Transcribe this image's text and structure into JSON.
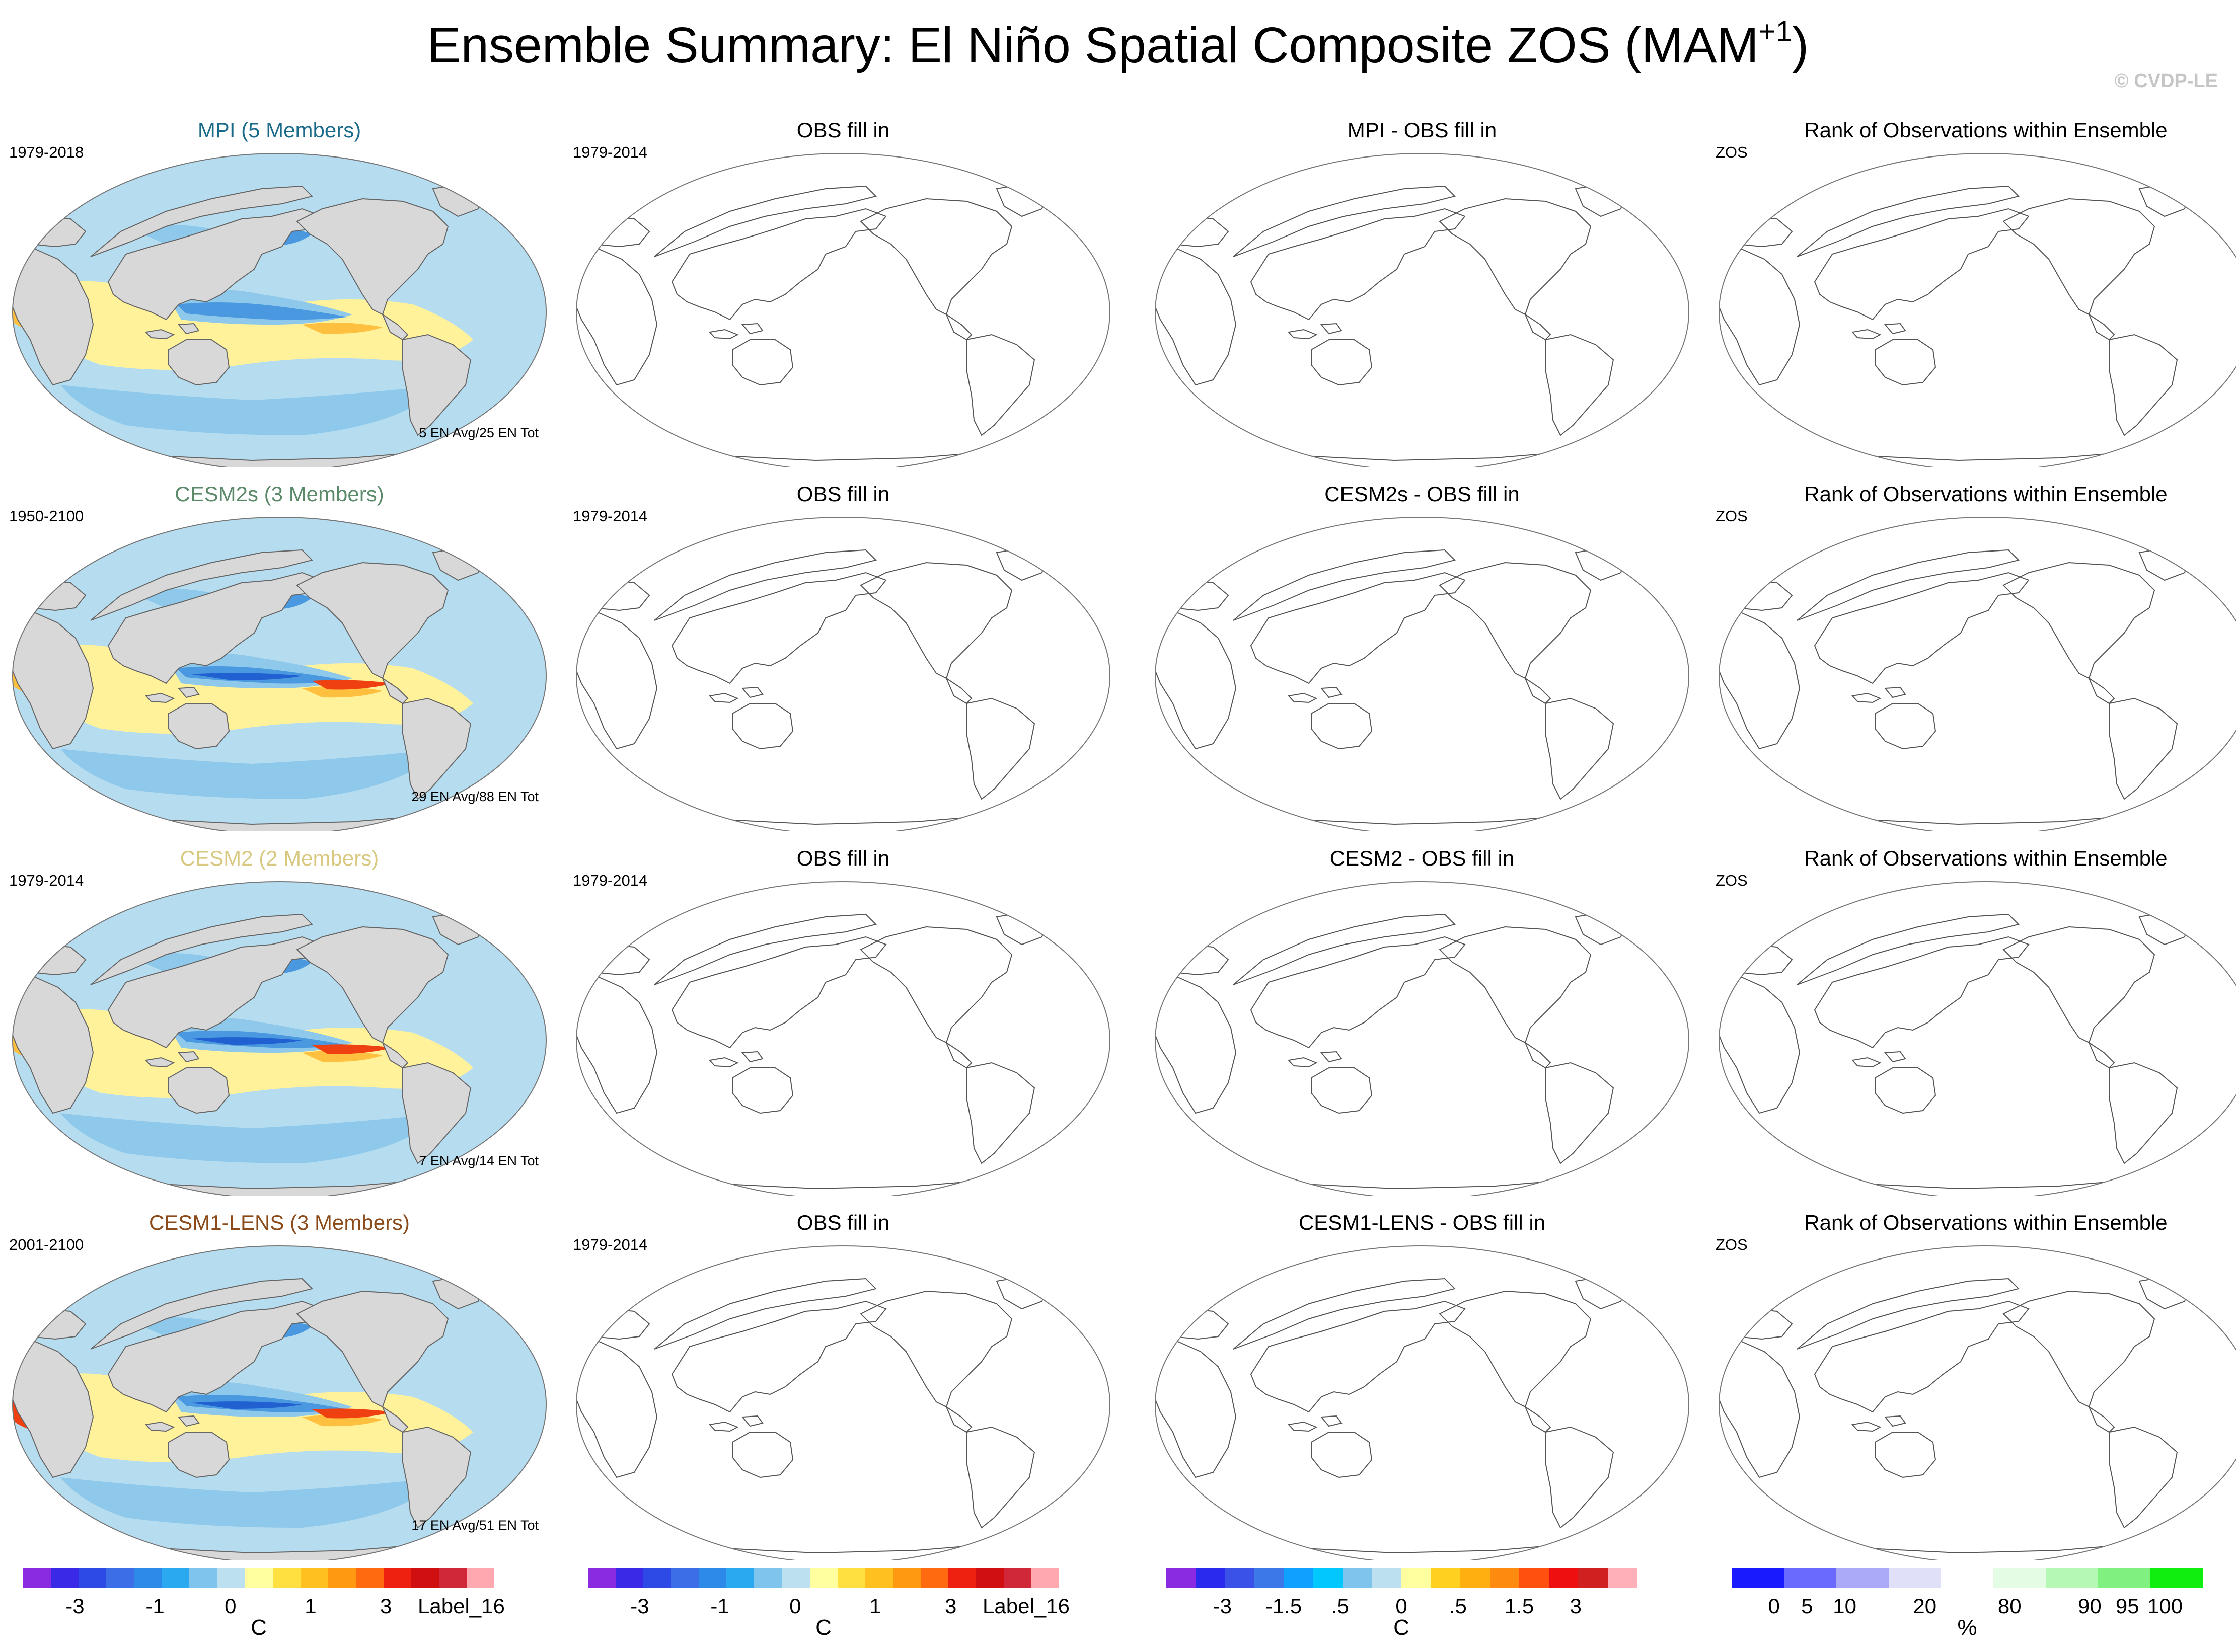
{
  "header": {
    "title_main": "Ensemble Summary: El Niño Spatial Composite ZOS (MAM",
    "title_sup": "+1",
    "title_close": ")",
    "credit": "© CVDP-LE"
  },
  "rows": [
    {
      "ensemble": {
        "title": "MPI (5 Members)",
        "title_color": "#1a6a8a",
        "years": "1979-2018",
        "count": "5 EN Avg/25 EN Tot"
      },
      "obs": {
        "title": "OBS fill in",
        "years": "1979-2014"
      },
      "diff": {
        "title": "MPI - OBS fill in"
      },
      "rank": {
        "title": "Rank of Observations within Ensemble",
        "var": "ZOS"
      }
    },
    {
      "ensemble": {
        "title": "CESM2s (3 Members)",
        "title_color": "#5a8a6a",
        "years": "1950-2100",
        "count": "29 EN Avg/88 EN Tot"
      },
      "obs": {
        "title": "OBS fill in",
        "years": "1979-2014"
      },
      "diff": {
        "title": "CESM2s - OBS fill in"
      },
      "rank": {
        "title": "Rank of Observations within Ensemble",
        "var": "ZOS"
      }
    },
    {
      "ensemble": {
        "title": "CESM2 (2 Members)",
        "title_color": "#d8c880",
        "years": "1979-2014",
        "count": "7 EN Avg/14 EN Tot"
      },
      "obs": {
        "title": "OBS fill in",
        "years": "1979-2014"
      },
      "diff": {
        "title": "CESM2 - OBS fill in"
      },
      "rank": {
        "title": "Rank of Observations within Ensemble",
        "var": "ZOS"
      }
    },
    {
      "ensemble": {
        "title": "CESM1-LENS (3 Members)",
        "title_color": "#8a4a1a",
        "years": "2001-2100",
        "count": "17 EN Avg/51 EN Tot"
      },
      "obs": {
        "title": "OBS fill in",
        "years": "1979-2014"
      },
      "diff": {
        "title": "CESM1-LENS - OBS fill in"
      },
      "rank": {
        "title": "Rank of Observations within Ensemble",
        "var": "ZOS"
      }
    }
  ],
  "colorbars": [
    {
      "colors": [
        "#8a2be2",
        "#3a2ae8",
        "#2e4ae6",
        "#3c6ee8",
        "#2e8ae8",
        "#2aa8f0",
        "#7ec4ec",
        "#bce0f0",
        "#ffffa0",
        "#ffe040",
        "#ffc020",
        "#ff9a10",
        "#ff6a10",
        "#ee2010",
        "#d01010",
        "#d02838",
        "#ffa8b0"
      ],
      "labels": [
        "-3",
        "-1",
        "0",
        "1",
        "3",
        "Label_16"
      ],
      "unit": "C"
    },
    {
      "colors": [
        "#8a2be2",
        "#3a2ae8",
        "#2e4ae6",
        "#3c6ee8",
        "#2e8ae8",
        "#2aa8f0",
        "#7ec4ec",
        "#bce0f0",
        "#ffffa0",
        "#ffe040",
        "#ffc020",
        "#ff9a10",
        "#ff6a10",
        "#ee2010",
        "#d01010",
        "#d02838",
        "#ffa8b0"
      ],
      "labels": [
        "-3",
        "-1",
        "0",
        "1",
        "3",
        "Label_16"
      ],
      "unit": "C"
    },
    {
      "colors": [
        "#8a2be2",
        "#2a2aee",
        "#3a52e8",
        "#3c78e8",
        "#10a0ff",
        "#00c8ff",
        "#7ec4ec",
        "#bce0f0",
        "#ffffa0",
        "#ffd020",
        "#ffb010",
        "#ff8a10",
        "#ff5010",
        "#ee1010",
        "#d02020",
        "#ffb0b8"
      ],
      "labels": [
        "-3",
        "-1.5",
        ".5",
        "0",
        ".5",
        "1.5",
        "3"
      ],
      "unit": "C"
    },
    {
      "colors": [
        "#1a1aff",
        "#6a6aff",
        "#aaaaf8",
        "#e0e0f8",
        "#ffffff",
        "#e4fce4",
        "#b4f8b4",
        "#80f080",
        "#10ee10"
      ],
      "labels": [
        "0",
        "5",
        "10",
        "20",
        "80",
        "90",
        "95",
        "100"
      ],
      "unit": "%"
    }
  ]
}
